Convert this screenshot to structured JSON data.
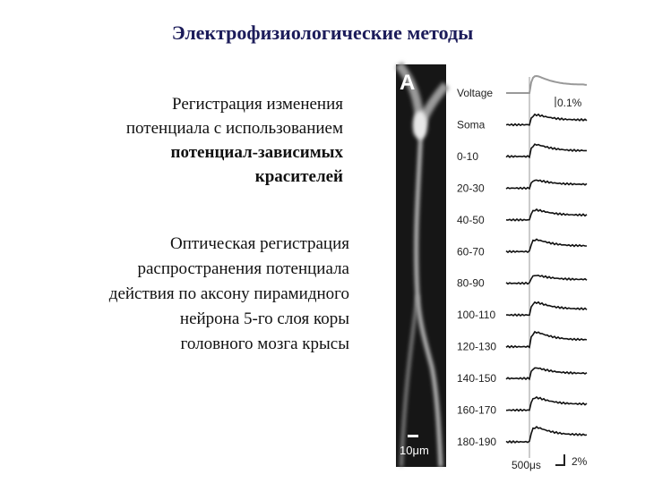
{
  "title": "Электрофизиологические методы",
  "text_blocks": [
    {
      "lines": [
        "Регистрация изменения",
        "потенциала с использованием",
        "потенциал-зависимых",
        "красителей"
      ]
    },
    {
      "lines": [
        "Оптическая регистрация",
        "распространения потенциала",
        "действия по аксону пирамидного",
        "нейрона 5-го слоя коры",
        "головного мозга крысы"
      ]
    }
  ],
  "figure": {
    "panel_label": "A",
    "scale_bar_label": "10μm",
    "traces": [
      "Voltage",
      "Soma",
      "0-10",
      "20-30",
      "40-50",
      "60-70",
      "80-90",
      "100-110",
      "120-130",
      "140-150",
      "160-170",
      "180-190"
    ],
    "amplitude_label": "0.1%",
    "time_scale_label": "500μs",
    "percent_scale_label": "2%"
  }
}
